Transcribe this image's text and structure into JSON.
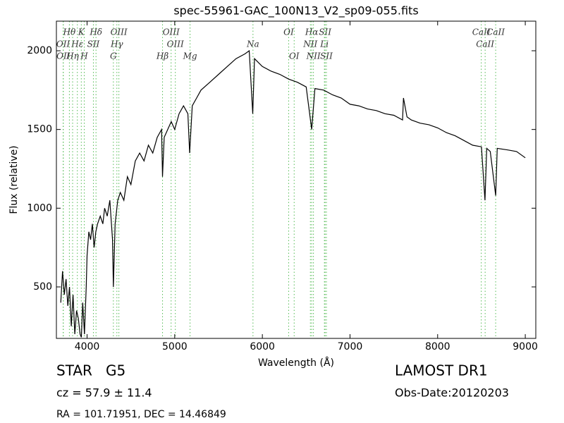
{
  "chart_data": {
    "type": "line",
    "title": "spec-55961-GAC_100N13_V2_sp09-055.fits",
    "xlabel": "Wavelength (Å)",
    "ylabel": "Flux (relative)",
    "xlim": [
      3650,
      9120
    ],
    "ylim": [
      173,
      2188
    ],
    "xticks": [
      4000,
      5000,
      6000,
      7000,
      8000,
      9000
    ],
    "yticks": [
      500,
      1000,
      1500,
      2000
    ],
    "color": "#000000",
    "line_color": "#55bb55",
    "x": [
      3700,
      3720,
      3740,
      3760,
      3780,
      3800,
      3820,
      3840,
      3860,
      3880,
      3900,
      3920,
      3935,
      3950,
      3970,
      3990,
      4000,
      4020,
      4040,
      4060,
      4080,
      4100,
      4120,
      4150,
      4180,
      4200,
      4230,
      4260,
      4290,
      4300,
      4320,
      4350,
      4380,
      4420,
      4460,
      4500,
      4550,
      4600,
      4650,
      4700,
      4750,
      4800,
      4850,
      4861,
      4880,
      4920,
      4960,
      5000,
      5050,
      5100,
      5150,
      5170,
      5200,
      5250,
      5300,
      5400,
      5500,
      5600,
      5700,
      5800,
      5850,
      5890,
      5910,
      6000,
      6100,
      6200,
      6300,
      6400,
      6500,
      6563,
      6600,
      6700,
      6800,
      6900,
      7000,
      7100,
      7200,
      7300,
      7400,
      7500,
      7600,
      7610,
      7650,
      7700,
      7800,
      7900,
      8000,
      8100,
      8200,
      8300,
      8400,
      8500,
      8540,
      8560,
      8600,
      8662,
      8680,
      8800,
      8900,
      9000
    ],
    "values": [
      400,
      600,
      450,
      550,
      380,
      500,
      250,
      450,
      200,
      350,
      300,
      200,
      180,
      400,
      200,
      500,
      700,
      850,
      800,
      900,
      750,
      850,
      900,
      950,
      900,
      1000,
      950,
      1050,
      800,
      500,
      900,
      1050,
      1100,
      1050,
      1200,
      1150,
      1300,
      1350,
      1300,
      1400,
      1350,
      1450,
      1500,
      1200,
      1450,
      1500,
      1550,
      1500,
      1600,
      1650,
      1600,
      1350,
      1650,
      1700,
      1750,
      1800,
      1850,
      1900,
      1950,
      1980,
      2000,
      1600,
      1950,
      1900,
      1870,
      1850,
      1820,
      1800,
      1770,
      1500,
      1760,
      1750,
      1720,
      1700,
      1660,
      1650,
      1630,
      1620,
      1600,
      1590,
      1560,
      1700,
      1580,
      1560,
      1540,
      1530,
      1510,
      1480,
      1460,
      1430,
      1400,
      1390,
      1050,
      1380,
      1360,
      1080,
      1380,
      1370,
      1360,
      1320
    ],
    "lines": [
      {
        "label": "Hθ",
        "x": 3798
      },
      {
        "label": "OII",
        "x": 3727
      },
      {
        "label": "OII",
        "x": 3729
      },
      {
        "label": "K",
        "x": 3934
      },
      {
        "label": "Hε",
        "x": 3889
      },
      {
        "label": "Hη",
        "x": 3835
      },
      {
        "label": "Hδ",
        "x": 4102
      },
      {
        "label": "SII",
        "x": 4072
      },
      {
        "label": "H",
        "x": 3968
      },
      {
        "label": "OIII",
        "x": 4363
      },
      {
        "label": "Hγ",
        "x": 4340
      },
      {
        "label": "G",
        "x": 4300
      },
      {
        "label": "OIII",
        "x": 4959
      },
      {
        "label": "OIII",
        "x": 5007
      },
      {
        "label": "Hβ",
        "x": 4861
      },
      {
        "label": "OI",
        "x": 6300
      },
      {
        "label": "Na",
        "x": 5893
      },
      {
        "label": "Mg",
        "x": 5175
      },
      {
        "label": "Hα",
        "x": 6563
      },
      {
        "label": "NII",
        "x": 6548
      },
      {
        "label": "OI",
        "x": 6363
      },
      {
        "label": "SII",
        "x": 6716
      },
      {
        "label": "Li",
        "x": 6708
      },
      {
        "label": "NII",
        "x": 6583
      },
      {
        "label": "CaII",
        "x": 8498
      },
      {
        "label": "CaII",
        "x": 8542
      },
      {
        "label": "SII",
        "x": 6731
      },
      {
        "label": "CaII",
        "x": 8662
      }
    ],
    "info": {
      "object": "STAR   G5",
      "cz": "cz = 57.9 ± 11.4",
      "coords": "RA = 101.71951, DEC = 14.46849",
      "survey": "LAMOST DR1",
      "date": "Obs-Date:20120203"
    }
  }
}
